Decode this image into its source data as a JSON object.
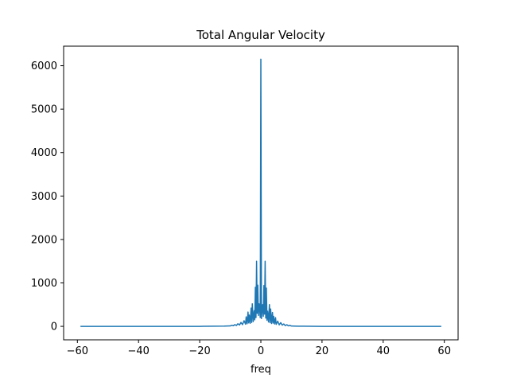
{
  "chart_data": {
    "type": "line",
    "title": "Total Angular Velocity",
    "xlabel": "freq",
    "ylabel": "",
    "xlim": [
      -64.5,
      64.5
    ],
    "ylim": [
      -310,
      6450
    ],
    "x_ticks": [
      -60,
      -40,
      -20,
      0,
      20,
      40,
      60
    ],
    "x_tick_labels": [
      "−60",
      "−40",
      "−20",
      "0",
      "20",
      "40",
      "60"
    ],
    "y_ticks": [
      0,
      1000,
      2000,
      3000,
      4000,
      5000,
      6000
    ],
    "y_tick_labels": [
      "0",
      "1000",
      "2000",
      "3000",
      "4000",
      "5000",
      "6000"
    ],
    "grid": false,
    "series": [
      {
        "color": "#1f77b4",
        "x": [
          -59,
          -20,
          -12,
          -10,
          -9.5,
          -9,
          -8.5,
          -8,
          -7.5,
          -7,
          -6.5,
          -6,
          -5.5,
          -5,
          -4.8,
          -4.5,
          -4.2,
          -4,
          -3.8,
          -3.5,
          -3.2,
          -3,
          -2.8,
          -2.5,
          -2.2,
          -2,
          -1.8,
          -1.6,
          -1.4,
          -1.2,
          -1.0,
          -0.8,
          -0.6,
          -0.4,
          -0.2,
          0,
          0.2,
          0.4,
          0.6,
          0.8,
          1.0,
          1.2,
          1.4,
          1.6,
          1.8,
          2,
          2.2,
          2.5,
          2.8,
          3,
          3.2,
          3.5,
          3.8,
          4,
          4.2,
          4.5,
          4.8,
          5,
          5.5,
          6,
          6.5,
          7,
          7.5,
          8,
          8.5,
          9,
          9.5,
          10,
          12,
          20,
          59
        ],
        "y": [
          0,
          0,
          5,
          10,
          25,
          15,
          40,
          20,
          60,
          30,
          90,
          40,
          130,
          50,
          220,
          60,
          330,
          80,
          260,
          70,
          420,
          90,
          520,
          110,
          360,
          150,
          900,
          200,
          1500,
          300,
          950,
          250,
          520,
          400,
          200,
          6150,
          180,
          380,
          500,
          230,
          940,
          280,
          1500,
          190,
          880,
          140,
          350,
          100,
          500,
          85,
          400,
          65,
          320,
          75,
          230,
          55,
          200,
          45,
          120,
          35,
          85,
          28,
          55,
          18,
          38,
          12,
          22,
          8,
          4,
          0,
          0
        ]
      }
    ]
  }
}
